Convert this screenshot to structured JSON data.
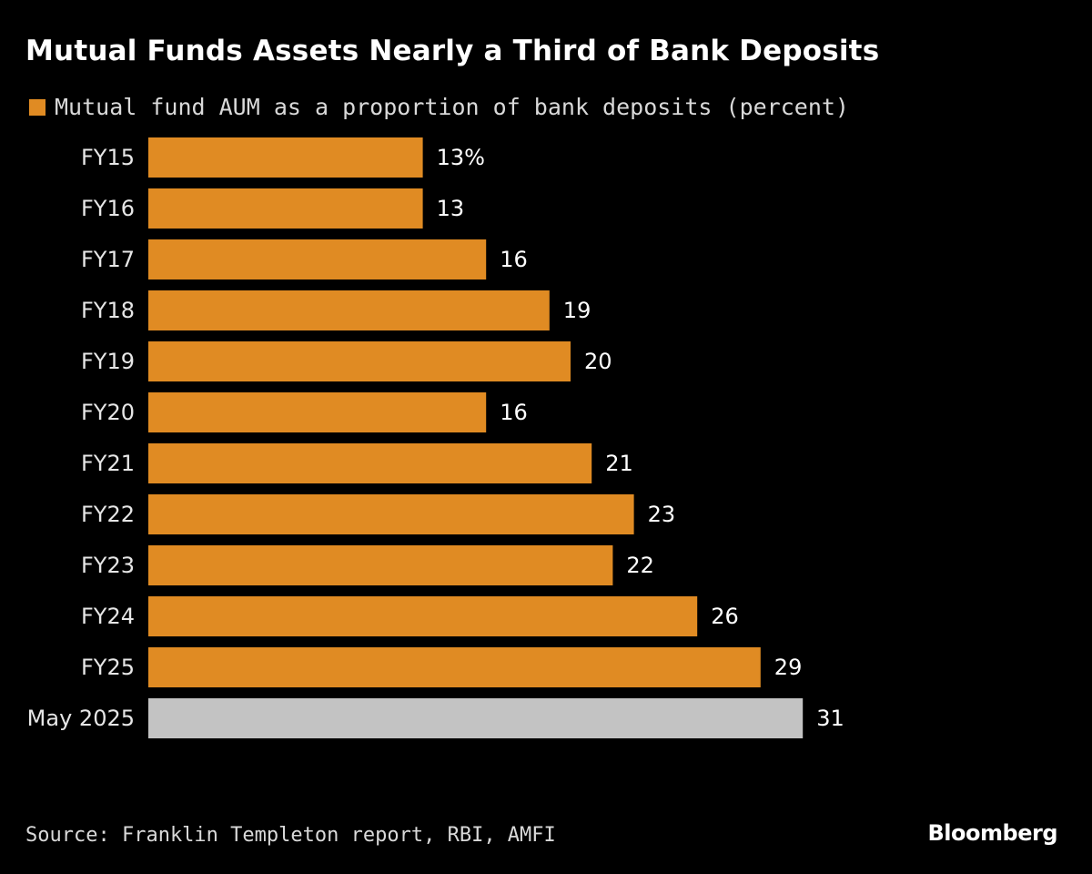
{
  "title": "Mutual Funds Assets Nearly a Third of Bank Deposits",
  "legend": {
    "label": "Mutual fund AUM as a proportion of bank deposits (percent)",
    "color": "#e08b23"
  },
  "source": "Source: Franklin Templeton report, RBI, AMFI",
  "logo": "Bloomberg",
  "colors": {
    "bar": "#e08b23",
    "highlight_bar": "#c3c3c3",
    "background": "#000000",
    "text": "#ffffff"
  },
  "chart_data": {
    "type": "bar",
    "orientation": "horizontal",
    "categories": [
      "FY15",
      "FY16",
      "FY17",
      "FY18",
      "FY19",
      "FY20",
      "FY21",
      "FY22",
      "FY23",
      "FY24",
      "FY25",
      "May 2025"
    ],
    "series": [
      {
        "name": "Mutual fund AUM as a proportion of bank deposits (percent)",
        "values": [
          13,
          13,
          16,
          19,
          20,
          16,
          21,
          23,
          22,
          26,
          29,
          31
        ]
      }
    ],
    "data_labels": [
      "13%",
      "13",
      "16",
      "19",
      "20",
      "16",
      "21",
      "23",
      "22",
      "26",
      "29",
      "31"
    ],
    "highlighted_category": "May 2025",
    "xlim": [
      0,
      31
    ],
    "grid": false,
    "legend_position": "top-left"
  }
}
